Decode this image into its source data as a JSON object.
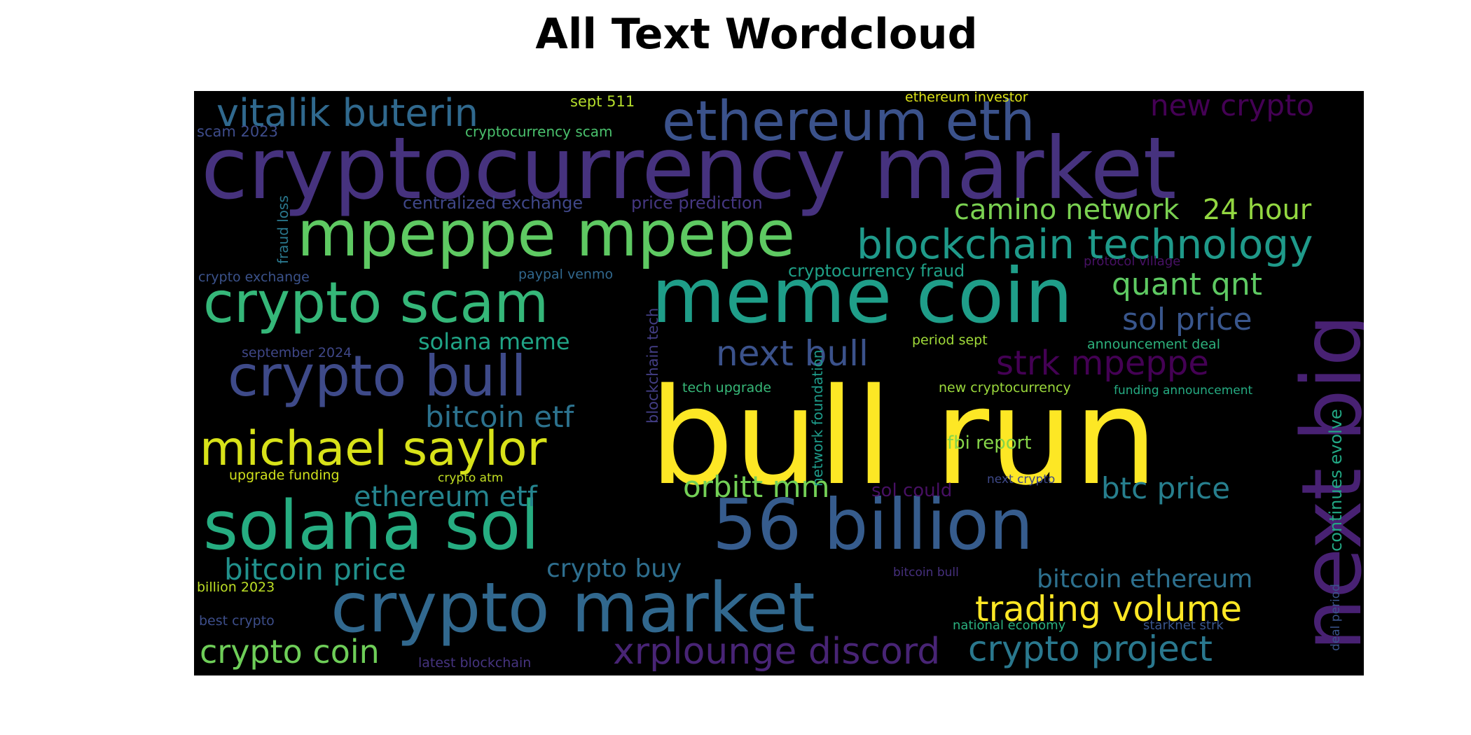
{
  "title": "All Text Wordcloud",
  "colormap": "viridis",
  "background": "#000000",
  "words": [
    {
      "text": "bull run",
      "color": "#fde725"
    },
    {
      "text": "cryptocurrency market",
      "color": "#46327e"
    },
    {
      "text": "meme coin",
      "color": "#1f9e89"
    },
    {
      "text": "next big",
      "color": "#482173"
    },
    {
      "text": "56 billion",
      "color": "#365c8d"
    },
    {
      "text": "crypto market",
      "color": "#31688e"
    },
    {
      "text": "mpeppe mpepe",
      "color": "#5ec962"
    },
    {
      "text": "solana sol",
      "color": "#26ad81"
    },
    {
      "text": "crypto scam",
      "color": "#35b779"
    },
    {
      "text": "crypto bull",
      "color": "#3e4a89"
    },
    {
      "text": "ethereum eth",
      "color": "#3b528b"
    },
    {
      "text": "michael saylor",
      "color": "#d8e219"
    },
    {
      "text": "blockchain technology",
      "color": "#1f9a8a"
    },
    {
      "text": "vitalik buterin",
      "color": "#30698e"
    },
    {
      "text": "camino network",
      "color": "#7ad151"
    },
    {
      "text": "24 hour",
      "color": "#93d741"
    },
    {
      "text": "xrplounge discord",
      "color": "#482475"
    },
    {
      "text": "trading volume",
      "color": "#fde725"
    },
    {
      "text": "crypto project",
      "color": "#2a788e"
    },
    {
      "text": "crypto coin",
      "color": "#6ece58"
    },
    {
      "text": "quant qnt",
      "color": "#5ec962"
    },
    {
      "text": "sol price",
      "color": "#39568c"
    },
    {
      "text": "strk mpeppe",
      "color": "#440154"
    },
    {
      "text": "next bull",
      "color": "#3b528b"
    },
    {
      "text": "bitcoin etf",
      "color": "#2c728e"
    },
    {
      "text": "ethereum etf",
      "color": "#25848e"
    },
    {
      "text": "bitcoin price",
      "color": "#21918c"
    },
    {
      "text": "new crypto",
      "color": "#440154"
    },
    {
      "text": "btc price",
      "color": "#277f8e"
    },
    {
      "text": "orbitt mm",
      "color": "#73d056"
    },
    {
      "text": "bitcoin ethereum",
      "color": "#2d708e"
    },
    {
      "text": "crypto buy",
      "color": "#2e6e8e"
    },
    {
      "text": "solana meme",
      "color": "#20a486"
    },
    {
      "text": "centralized exchange",
      "color": "#3f4788"
    },
    {
      "text": "price prediction",
      "color": "#453781"
    },
    {
      "text": "cryptocurrency fraud",
      "color": "#1fa187"
    },
    {
      "text": "fbi report",
      "color": "#86d549"
    },
    {
      "text": "sol could",
      "color": "#471063"
    },
    {
      "text": "continues evolve",
      "color": "#22a884"
    },
    {
      "text": "network foundation",
      "color": "#1e9b8a"
    },
    {
      "text": "blockchain tech",
      "color": "#433e85"
    },
    {
      "text": "fraud loss",
      "color": "#2a788e"
    },
    {
      "text": "scam 2023",
      "color": "#3e4c8a"
    },
    {
      "text": "sept 511",
      "color": "#b5de2b"
    },
    {
      "text": "cryptocurrency scam",
      "color": "#4ac16d"
    },
    {
      "text": "ethereum investor",
      "color": "#dde318"
    },
    {
      "text": "crypto exchange",
      "color": "#3b528b"
    },
    {
      "text": "paypal venmo",
      "color": "#31688e"
    },
    {
      "text": "protocol village",
      "color": "#471164"
    },
    {
      "text": "period sept",
      "color": "#a0da39"
    },
    {
      "text": "announcement deal",
      "color": "#2db27d"
    },
    {
      "text": "september 2024",
      "color": "#3f4788"
    },
    {
      "text": "tech upgrade",
      "color": "#37b878"
    },
    {
      "text": "new cryptocurrency",
      "color": "#9bd93c"
    },
    {
      "text": "funding announcement",
      "color": "#25ab82"
    },
    {
      "text": "upgrade funding",
      "color": "#d0e11c"
    },
    {
      "text": "crypto atm",
      "color": "#c2df23"
    },
    {
      "text": "next crypto",
      "color": "#3e4989"
    },
    {
      "text": "billion 2023",
      "color": "#bddf26"
    },
    {
      "text": "bitcoin bull",
      "color": "#46307e"
    },
    {
      "text": "best crypto",
      "color": "#3d4e8a"
    },
    {
      "text": "latest blockchain",
      "color": "#463480"
    },
    {
      "text": "national economy",
      "color": "#2ab07f"
    },
    {
      "text": "starknet strk",
      "color": "#39558c"
    },
    {
      "text": "deal period",
      "color": "#3a538b"
    }
  ]
}
